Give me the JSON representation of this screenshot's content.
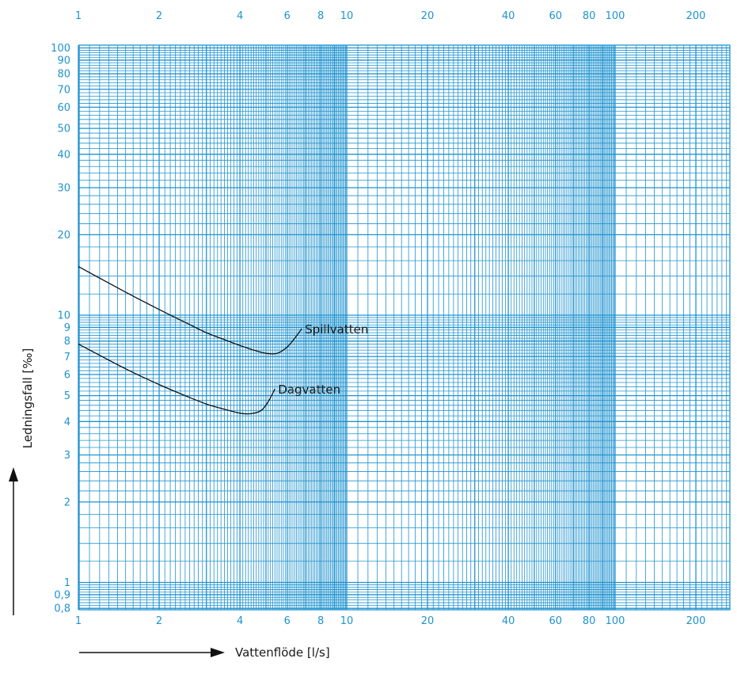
{
  "chart_data": {
    "type": "line",
    "xscale": "log",
    "yscale": "log",
    "xlim": [
      1,
      280
    ],
    "ylim": [
      0.8,
      100
    ],
    "grid": true,
    "xlabel": "Vattenflöde [l/s]",
    "ylabel": "Ledningsfall [‰]",
    "x_ticks": [
      1,
      2,
      4,
      6,
      8,
      10,
      20,
      40,
      60,
      80,
      100,
      200
    ],
    "x_tick_labels": [
      "1",
      "2",
      "4",
      "6",
      "8",
      "10",
      "20",
      "40",
      "60",
      "80",
      "100",
      "200"
    ],
    "y_ticks": [
      0.8,
      0.9,
      1,
      2,
      3,
      4,
      5,
      6,
      7,
      8,
      9,
      10,
      20,
      30,
      40,
      50,
      60,
      70,
      80,
      90,
      100
    ],
    "y_tick_labels": [
      "0,8",
      "0,9",
      "1",
      "2",
      "3",
      "4",
      "5",
      "6",
      "7",
      "8",
      "9",
      "10",
      "20",
      "30",
      "40",
      "50",
      "60",
      "70",
      "80",
      "90",
      "100"
    ],
    "series": [
      {
        "name": "Spillvatten",
        "x": [
          1.0,
          1.5,
          2.0,
          2.5,
          3.0,
          3.5,
          4.0,
          4.5,
          5.0,
          5.5,
          6.0,
          6.4,
          6.8
        ],
        "y": [
          15.2,
          12.2,
          10.5,
          9.4,
          8.6,
          8.1,
          7.7,
          7.4,
          7.2,
          7.2,
          7.6,
          8.2,
          8.9
        ]
      },
      {
        "name": "Dagvatten",
        "x": [
          1.0,
          1.5,
          2.0,
          2.5,
          3.0,
          3.5,
          4.0,
          4.4,
          4.8,
          5.1,
          5.4
        ],
        "y": [
          7.8,
          6.3,
          5.5,
          5.0,
          4.65,
          4.45,
          4.3,
          4.28,
          4.4,
          4.75,
          5.3
        ]
      }
    ]
  }
}
